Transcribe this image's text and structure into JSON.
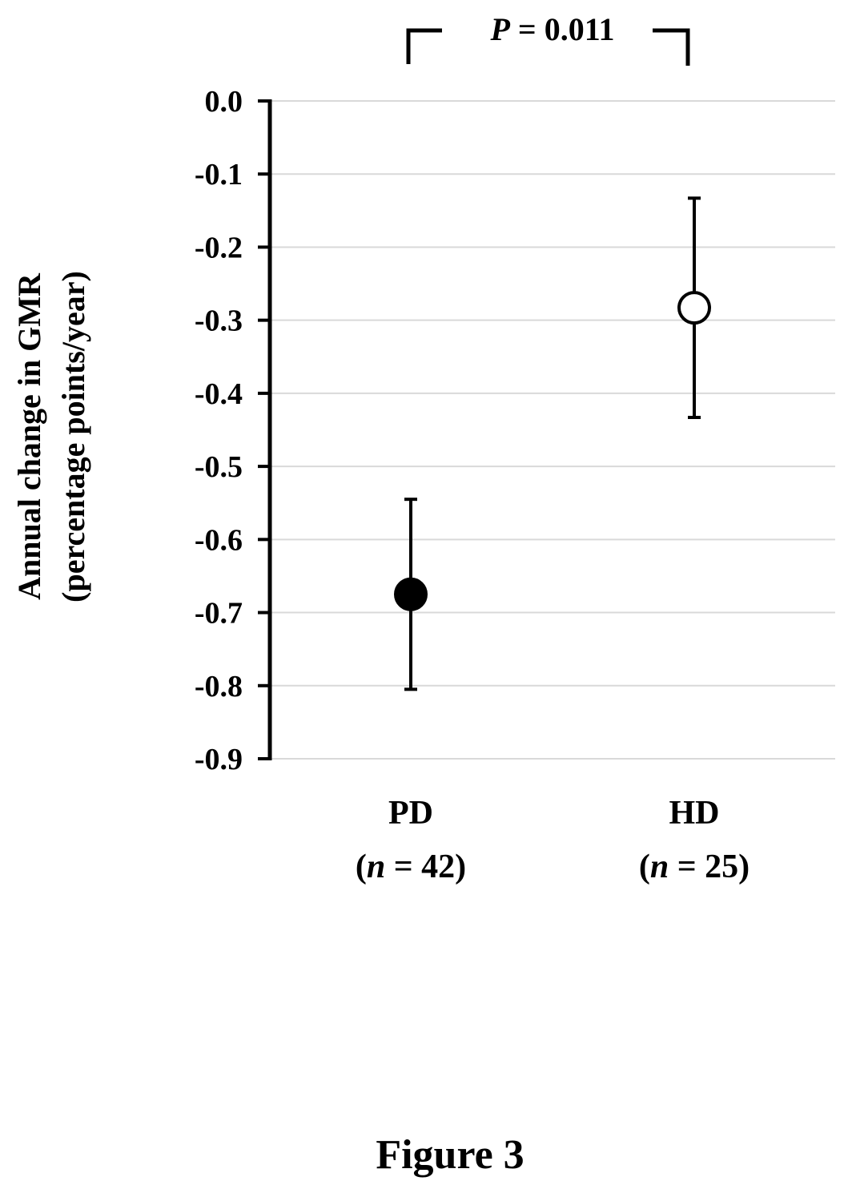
{
  "chart_data": {
    "type": "scatter",
    "categories": [
      "PD",
      "HD"
    ],
    "category_sublabels": [
      {
        "n_label": "n",
        "rest": " = 42)"
      },
      {
        "n_label": "n",
        "rest": " = 25)"
      }
    ],
    "series": [
      {
        "values": [
          -0.675,
          -0.283
        ],
        "error_lower": [
          -0.805,
          -0.433
        ],
        "error_upper": [
          -0.545,
          -0.133
        ],
        "marker_fill": [
          "#000000",
          "#ffffff"
        ]
      }
    ],
    "ylabel_line1": "Annual change in GMR",
    "ylabel_line2": "(percentage points/year)",
    "ylim": [
      -0.9,
      0.0
    ],
    "yticks": [
      0.0,
      -0.1,
      -0.2,
      -0.3,
      -0.4,
      -0.5,
      -0.6,
      -0.7,
      -0.8,
      -0.9
    ],
    "ytick_labels": [
      "0.0",
      "-0.1",
      "-0.2",
      "-0.3",
      "-0.4",
      "-0.5",
      "-0.6",
      "-0.7",
      "-0.8",
      "-0.9"
    ],
    "grid": true,
    "comparison": {
      "p_symbol": "P",
      "p_text": " = 0.011"
    }
  },
  "caption": "Figure 3",
  "colors": {
    "axis": "#000000",
    "grid": "#d9d9d9",
    "marker_edge": "#000000"
  }
}
